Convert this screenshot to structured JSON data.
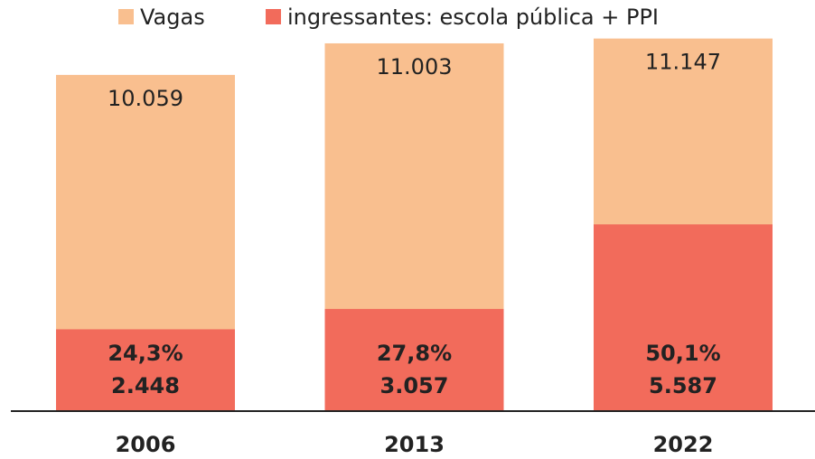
{
  "chart_data": {
    "type": "bar",
    "barmode": "overlay",
    "categories": [
      "2006",
      "2013",
      "2022"
    ],
    "series": [
      {
        "name": "Vagas",
        "color": "#f9bf8f",
        "values": [
          10059,
          11003,
          11147
        ],
        "value_labels": [
          "10.059",
          "11.003",
          "11.147"
        ]
      },
      {
        "name": "ingressantes: escola pública + PPI",
        "color": "#f26b5b",
        "values": [
          2448,
          3057,
          5587
        ],
        "value_labels": [
          "2.448",
          "3.057",
          "5.587"
        ],
        "percentage_labels": [
          "24,3%",
          "27,8%",
          "50,1%"
        ]
      }
    ],
    "ylim": [
      0,
      12300
    ]
  }
}
